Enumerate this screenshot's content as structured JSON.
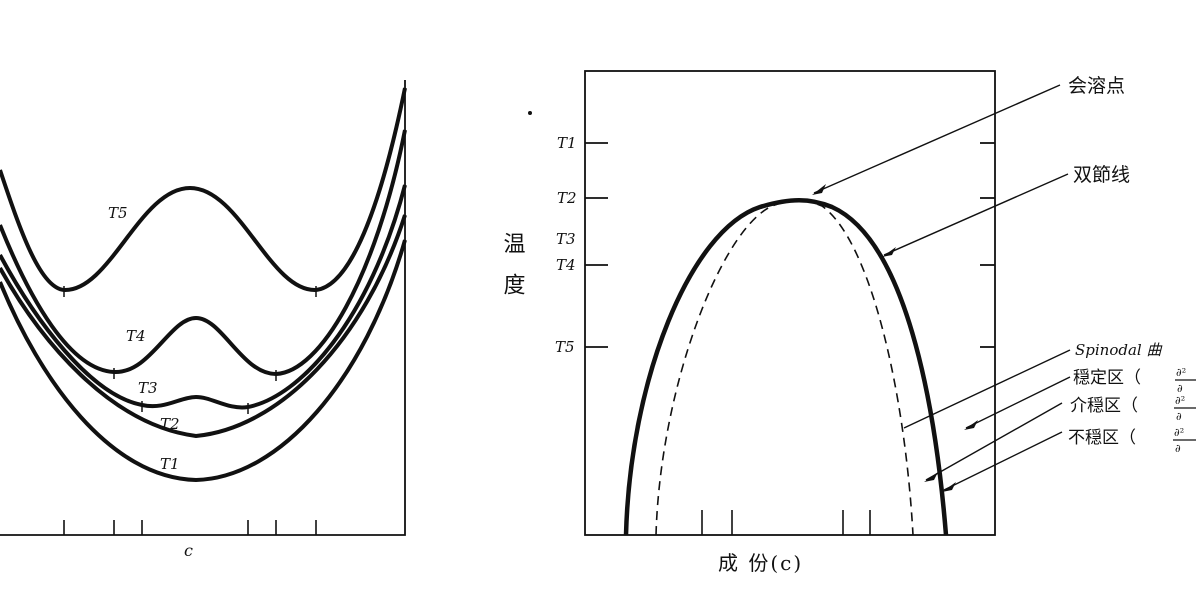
{
  "left_panel": {
    "x_label": "c",
    "curve_labels": [
      "T5",
      "T4",
      "T3",
      "T2",
      "T1"
    ]
  },
  "right_panel": {
    "y_label": "温 度",
    "x_label": "成 份(c)",
    "temperature_labels": [
      "T1",
      "T2",
      "T3",
      "T4",
      "T5"
    ],
    "annotations": {
      "critical_point": "会溶点",
      "binodal": "双節线",
      "spinodal": "Spinodal 曲",
      "stable": "穏定区（",
      "metastable": "介穏区（",
      "unstable": "不穏区（",
      "fraction_numerator": "∂²",
      "fraction_denominator": "∂"
    }
  }
}
